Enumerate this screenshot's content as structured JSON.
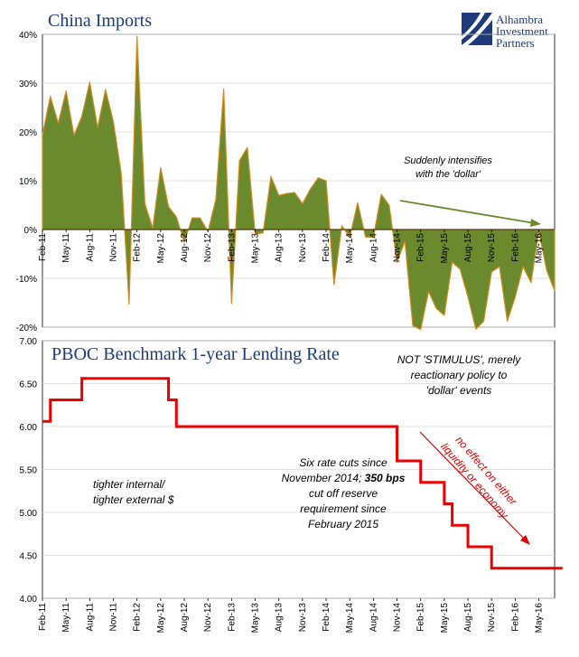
{
  "logo": {
    "lines": [
      "Alhambra",
      "Investment",
      "Partners"
    ]
  },
  "colors": {
    "title": "#1f3a7a",
    "area_fill": "#6b8a2e",
    "area_stroke": "#d98a1e",
    "rate_line": "#ee0000",
    "arrow_green": "#6b8a2e",
    "red_text": "#e00000"
  },
  "chart_data": [
    {
      "type": "area",
      "title": "China Imports",
      "x_tick_labels": [
        "Feb-11",
        "May-11",
        "Aug-11",
        "Nov-11",
        "Feb-12",
        "May-12",
        "Aug-12",
        "Nov-12",
        "Feb-13",
        "May-13",
        "Aug-13",
        "Nov-13",
        "Feb-14",
        "May-14",
        "Aug-14",
        "Nov-14",
        "Feb-15",
        "May-15",
        "Aug-15",
        "Nov-15",
        "Feb-16",
        "May-16"
      ],
      "y_tick_labels": [
        "40%",
        "30%",
        "20%",
        "10%",
        "0%",
        "-10%",
        "-20%"
      ],
      "ylim": [
        -20,
        40
      ],
      "values": [
        19.4,
        27.3,
        21.8,
        28.4,
        19.3,
        23.2,
        30.2,
        20.9,
        28.7,
        22.1,
        11.5,
        -15.3,
        39.6,
        5.3,
        0.3,
        12.7,
        4.7,
        2.6,
        -2.6,
        2.4,
        2.4,
        -0.4,
        6.1,
        28.8,
        -15.2,
        14.1,
        16.8,
        -0.9,
        -0.7,
        10.9,
        7.0,
        7.4,
        7.6,
        5.3,
        8.3,
        10.6,
        10.0,
        -11.3,
        0.8,
        -1.6,
        5.5,
        -1.5,
        -1.6,
        7.2,
        5.0,
        -6.7,
        -2.4,
        -19.7,
        -20.5,
        -12.7,
        -16.2,
        -17.6,
        -6.7,
        -8.1,
        -13.8,
        -20.4,
        -18.8,
        -8.7,
        -7.6,
        -18.8,
        -13.8,
        -7.6,
        -10.9,
        -0.4,
        -8.4,
        -12.5
      ],
      "annotations": [
        {
          "lines": [
            "Suddenly intensifies",
            "with the 'dollar'"
          ]
        }
      ]
    },
    {
      "type": "line",
      "title": "PBOC Benchmark 1-year Lending Rate",
      "x_tick_labels": [
        "Feb-11",
        "May-11",
        "Aug-11",
        "Nov-11",
        "Feb-12",
        "May-12",
        "Aug-12",
        "Nov-12",
        "Feb-13",
        "May-13",
        "Aug-13",
        "Nov-13",
        "Feb-14",
        "May-14",
        "Aug-14",
        "Nov-14",
        "Feb-15",
        "May-15",
        "Aug-15",
        "Nov-15",
        "Feb-16",
        "May-16"
      ],
      "y_tick_labels": [
        "7.00",
        "6.50",
        "6.00",
        "5.50",
        "5.00",
        "4.50",
        "4.00"
      ],
      "ylim": [
        4.0,
        7.0
      ],
      "steps": [
        {
          "x": 0,
          "y": 6.06
        },
        {
          "x": 1,
          "y": 6.31
        },
        {
          "x": 5,
          "y": 6.56
        },
        {
          "x": 16,
          "y": 6.31
        },
        {
          "x": 17,
          "y": 6.0
        },
        {
          "x": 45,
          "y": 5.6
        },
        {
          "x": 48,
          "y": 5.35
        },
        {
          "x": 51,
          "y": 5.1
        },
        {
          "x": 52,
          "y": 4.85
        },
        {
          "x": 54,
          "y": 4.6
        },
        {
          "x": 57,
          "y": 4.35
        },
        {
          "x": 66,
          "y": 4.35
        }
      ],
      "annotations": [
        {
          "lines": [
            "NOT 'STIMULUS', merely",
            "reactionary policy to",
            "'dollar' events"
          ]
        },
        {
          "lines": [
            "tighter internal/",
            "tighter external $"
          ]
        },
        {
          "lines": [
            "Six rate cuts since",
            "November 2014; 350 bps",
            "cut off reserve",
            "requirement since",
            "February 2015"
          ]
        },
        {
          "lines": [
            "no effect on either",
            "liquidity or economy"
          ]
        }
      ]
    }
  ]
}
